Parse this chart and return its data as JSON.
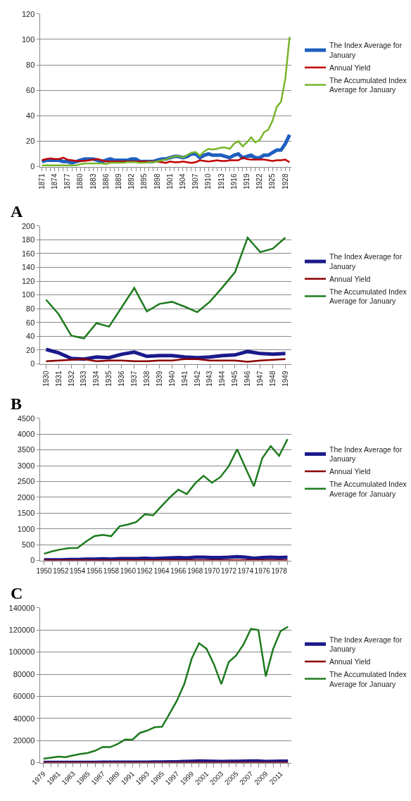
{
  "chart_data": [
    {
      "type": "line",
      "categories": [
        "1871",
        null,
        null,
        "1874",
        null,
        null,
        "1877",
        null,
        null,
        "1880",
        null,
        null,
        "1883",
        null,
        null,
        "1886",
        null,
        null,
        "1889",
        null,
        null,
        "1892",
        null,
        null,
        "1895",
        null,
        null,
        "1898",
        null,
        null,
        "1901",
        null,
        null,
        "1904",
        null,
        null,
        "1907",
        null,
        null,
        "1910",
        null,
        null,
        "1913",
        null,
        null,
        "1916",
        null,
        null,
        "1919",
        null,
        null,
        "1922",
        null,
        null,
        "1925",
        null,
        null,
        "1928",
        null
      ],
      "series": [
        {
          "name": "The Index Average for January",
          "color": "#1f5fbf",
          "values": [
            4,
            5,
            5,
            5,
            5,
            4,
            4,
            3,
            4,
            5,
            6,
            6,
            6,
            5,
            4,
            5,
            6,
            5,
            5,
            5,
            5,
            6,
            6,
            4,
            4,
            4,
            4,
            5,
            6,
            6,
            7,
            8,
            8,
            7,
            8,
            10,
            10,
            7,
            9,
            10,
            9,
            9,
            9,
            8,
            7,
            9,
            10,
            7,
            8,
            9,
            7,
            7,
            9,
            9,
            11,
            13,
            13,
            18,
            25
          ]
        },
        {
          "name": "Annual Yield",
          "color": "#c00000",
          "values": [
            5,
            6,
            6.5,
            6,
            6,
            7,
            5.5,
            5,
            4.5,
            4.5,
            4.5,
            5,
            5.5,
            6,
            5,
            4,
            4,
            4,
            4,
            4,
            4,
            4,
            4,
            4,
            4,
            4,
            4,
            4,
            3.5,
            3,
            4,
            3.5,
            3.5,
            4,
            3.5,
            3,
            3.5,
            5,
            4.5,
            4,
            4.5,
            5,
            4.5,
            4.5,
            5,
            5,
            5,
            7,
            6,
            5.5,
            5.5,
            5.5,
            5.5,
            5,
            4.5,
            5,
            5,
            5.5,
            3.5
          ]
        },
        {
          "name": "The Accumulated Index Average for January",
          "color": "#77b52a",
          "values": [
            1,
            1,
            1,
            1,
            1,
            1,
            1,
            1,
            1,
            2,
            2.5,
            2.5,
            2.5,
            2.5,
            2.5,
            2,
            3,
            3,
            3,
            3,
            3.5,
            3.5,
            3.5,
            3,
            3,
            3.5,
            3.5,
            4,
            5,
            5.5,
            7,
            8,
            8.5,
            7,
            9,
            11,
            11.5,
            8.5,
            12,
            14,
            13.5,
            14,
            15,
            15,
            14,
            18,
            20,
            16,
            19,
            23,
            19,
            21,
            27,
            29,
            36,
            47,
            51,
            69,
            102
          ]
        }
      ],
      "ylim": [
        0,
        120
      ],
      "yticks": [
        0,
        20,
        40,
        60,
        80,
        100,
        120
      ],
      "grid": "y",
      "legend": "right",
      "marker": "none",
      "line_style": "solid"
    },
    {
      "type": "line",
      "title": "A",
      "categories": [
        "1930",
        "1931",
        "1932",
        "1933",
        "1934",
        "1935",
        "1936",
        "1937",
        "1938",
        "1939",
        "1940",
        "1941",
        "1942",
        "1943",
        "1944",
        "1945",
        "1946",
        "1947",
        "1948",
        "1949"
      ],
      "series": [
        {
          "name": "The Index Average for January",
          "color": "#1a1a8c",
          "values": [
            21,
            16,
            8,
            7,
            10,
            9,
            14,
            17,
            11,
            12,
            12,
            10,
            9,
            10,
            12,
            13,
            18,
            15,
            14,
            15
          ]
        },
        {
          "name": "Annual Yield",
          "color": "#8b0000",
          "values": [
            4,
            5,
            6,
            7,
            4,
            5,
            5,
            4,
            4,
            5,
            5,
            7,
            7,
            5,
            5,
            5,
            3,
            5,
            6,
            7
          ]
        },
        {
          "name": "The Accumulated Index Average for January",
          "color": "#1e7a1e",
          "values": [
            93,
            72,
            41,
            37,
            59,
            54,
            82,
            110,
            76,
            87,
            90,
            83,
            75,
            90,
            111,
            133,
            183,
            162,
            167,
            183
          ]
        }
      ],
      "ylim": [
        0,
        200
      ],
      "yticks": [
        0,
        20,
        40,
        60,
        80,
        100,
        120,
        140,
        160,
        180,
        200
      ],
      "grid": "y",
      "legend": "right",
      "marker": "none",
      "line_style": "solid"
    },
    {
      "type": "line",
      "title": "B",
      "categories": [
        "1950",
        null,
        "1952",
        null,
        "1954",
        null,
        "1956",
        null,
        "1958",
        null,
        "1960",
        null,
        "1962",
        null,
        "1964",
        null,
        "1966",
        null,
        "1968",
        null,
        "1970",
        null,
        "1972",
        null,
        "1974",
        null,
        "1976",
        null,
        "1978",
        null
      ],
      "series": [
        {
          "name": "The Index Average for January",
          "color": "#1a1a8c",
          "values": [
            20,
            20,
            20,
            30,
            30,
            40,
            40,
            50,
            40,
            60,
            60,
            60,
            70,
            60,
            70,
            80,
            90,
            80,
            100,
            100,
            90,
            90,
            100,
            120,
            100,
            70,
            90,
            100,
            90,
            100
          ]
        },
        {
          "name": "Annual Yield",
          "color": "#8b0000",
          "values": [
            5,
            5,
            5,
            5,
            5,
            5,
            5,
            5,
            5,
            5,
            5,
            5,
            5,
            5,
            5,
            5,
            5,
            5,
            5,
            5,
            5,
            5,
            5,
            5,
            5,
            5,
            5,
            5,
            5,
            5
          ]
        },
        {
          "name": "The Accumulated Index Average for January",
          "color": "#1e7a1e",
          "values": [
            210,
            290,
            350,
            390,
            400,
            600,
            770,
            810,
            770,
            1080,
            1140,
            1220,
            1460,
            1430,
            1720,
            2000,
            2240,
            2100,
            2440,
            2680,
            2460,
            2640,
            2980,
            3520,
            2930,
            2350,
            3240,
            3620,
            3310,
            3840
          ]
        }
      ],
      "ylim": [
        0,
        4500
      ],
      "yticks": [
        0,
        500,
        1000,
        1500,
        2000,
        2500,
        3000,
        3500,
        4000,
        4500
      ],
      "grid": "y",
      "legend": "right",
      "marker": "none",
      "line_style": "solid"
    },
    {
      "type": "line",
      "title": "C",
      "categories": [
        "1979",
        null,
        "1981",
        null,
        "1983",
        null,
        "1985",
        null,
        "1987",
        null,
        "1989",
        null,
        "1991",
        null,
        "1993",
        null,
        "1995",
        null,
        "1997",
        null,
        "1999",
        null,
        "2001",
        null,
        "2003",
        null,
        "2005",
        null,
        "2007",
        null,
        "2009",
        null,
        "2011",
        null
      ],
      "series": [
        {
          "name": "The Index Average for January",
          "color": "#1a1a8c",
          "values": [
            100,
            100,
            100,
            100,
            100,
            200,
            200,
            200,
            300,
            300,
            300,
            300,
            300,
            400,
            400,
            500,
            500,
            600,
            700,
            1000,
            1200,
            1400,
            1300,
            1100,
            900,
            1100,
            1200,
            1300,
            1400,
            1400,
            900,
            1100,
            1300,
            1300
          ]
        },
        {
          "name": "Annual Yield",
          "color": "#8b0000",
          "values": [
            0,
            0,
            0,
            0,
            0,
            0,
            0,
            0,
            0,
            0,
            0,
            0,
            0,
            0,
            0,
            0,
            0,
            0,
            0,
            0,
            0,
            0,
            0,
            0,
            0,
            0,
            0,
            0,
            0,
            0,
            0,
            0,
            0,
            0
          ]
        },
        {
          "name": "The Accumulated Index Average for January",
          "color": "#1e7a1e",
          "values": [
            3500,
            4500,
            5500,
            5000,
            6500,
            7800,
            8800,
            10800,
            14200,
            14000,
            16800,
            20800,
            20700,
            26800,
            29000,
            32000,
            32500,
            44000,
            56000,
            71000,
            94000,
            108000,
            103000,
            89000,
            71000,
            91000,
            97000,
            107000,
            121000,
            120000,
            78000,
            103000,
            119000,
            123000
          ]
        }
      ],
      "ylim": [
        0,
        140000
      ],
      "yticks": [
        0,
        20000,
        40000,
        60000,
        80000,
        100000,
        120000,
        140000
      ],
      "grid": "y",
      "legend": "right",
      "marker": "none",
      "line_style": "solid"
    }
  ]
}
